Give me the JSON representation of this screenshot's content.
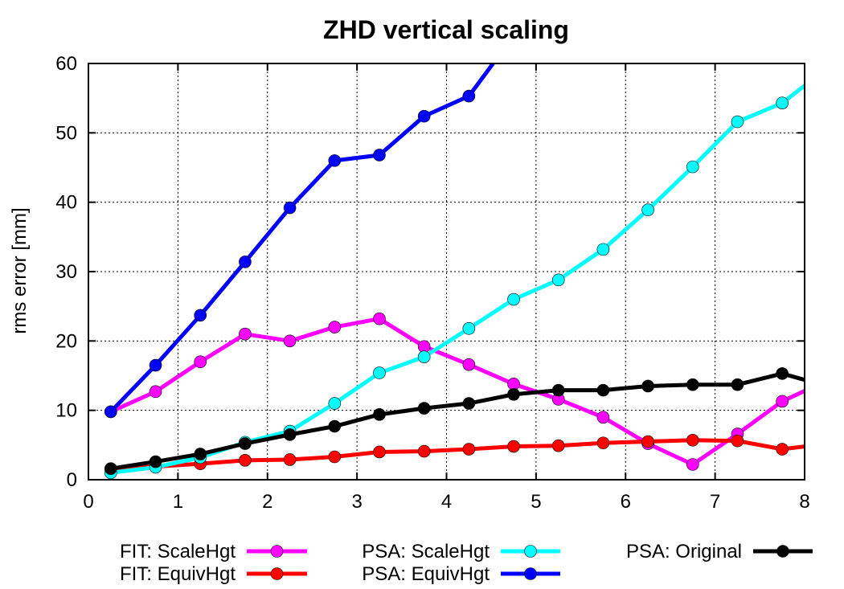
{
  "chart_data": {
    "type": "line",
    "title": "ZHD vertical scaling",
    "xlabel": "",
    "ylabel": "rms error [mm]",
    "xlim": [
      0,
      8
    ],
    "ylim": [
      0,
      60
    ],
    "x_ticks": [
      0,
      1,
      2,
      3,
      4,
      5,
      6,
      7,
      8
    ],
    "y_ticks": [
      0,
      10,
      20,
      30,
      40,
      50,
      60
    ],
    "grid": true,
    "legend_position": "bottom",
    "series": [
      {
        "name": "FIT: ScaleHgt",
        "color": "#ff00ff",
        "x": [
          0.25,
          0.75,
          1.25,
          1.75,
          2.25,
          2.75,
          3.25,
          3.75,
          4.25,
          4.75,
          5.25,
          5.75,
          6.25,
          6.75,
          7.25,
          7.75,
          8.0
        ],
        "y": [
          9.8,
          12.7,
          17.0,
          21.0,
          20.0,
          22.0,
          23.2,
          19.2,
          16.6,
          13.8,
          11.6,
          9.0,
          5.2,
          2.2,
          6.6,
          11.3,
          12.8
        ]
      },
      {
        "name": "FIT: EquivHgt",
        "color": "#ff0000",
        "x": [
          0.25,
          0.75,
          1.25,
          1.75,
          2.25,
          2.75,
          3.25,
          3.75,
          4.25,
          4.75,
          5.25,
          5.75,
          6.25,
          6.75,
          7.25,
          7.75,
          8.0
        ],
        "y": [
          1.5,
          1.9,
          2.3,
          2.8,
          2.9,
          3.3,
          4.0,
          4.1,
          4.4,
          4.8,
          4.9,
          5.3,
          5.5,
          5.7,
          5.6,
          4.4,
          4.8
        ]
      },
      {
        "name": "PSA: ScaleHgt",
        "color": "#00ffff",
        "x": [
          0.25,
          0.75,
          1.25,
          1.75,
          2.25,
          2.75,
          3.25,
          3.75,
          4.25,
          4.75,
          5.25,
          5.75,
          6.25,
          6.75,
          7.25,
          7.75,
          8.0
        ],
        "y": [
          1.0,
          1.8,
          3.2,
          5.4,
          7.0,
          11.0,
          15.4,
          17.7,
          21.8,
          26.0,
          28.8,
          33.2,
          38.9,
          45.1,
          51.6,
          54.3,
          56.8
        ]
      },
      {
        "name": "PSA: EquivHgt",
        "color": "#0000ff",
        "x": [
          0.25,
          0.75,
          1.25,
          1.75,
          2.25,
          2.75,
          3.25,
          3.75,
          4.25,
          4.52
        ],
        "y": [
          9.8,
          16.5,
          23.7,
          31.4,
          39.2,
          46.0,
          46.8,
          52.4,
          55.3,
          60.0
        ]
      },
      {
        "name": "PSA: Original",
        "color": "#000000",
        "x": [
          0.25,
          0.75,
          1.25,
          1.75,
          2.25,
          2.75,
          3.25,
          3.75,
          4.25,
          4.75,
          5.25,
          5.75,
          6.25,
          6.75,
          7.25,
          7.75,
          8.0
        ],
        "y": [
          1.6,
          2.6,
          3.7,
          5.2,
          6.5,
          7.7,
          9.4,
          10.3,
          11.0,
          12.3,
          12.9,
          12.9,
          13.5,
          13.7,
          13.7,
          15.3,
          14.4
        ]
      }
    ]
  }
}
